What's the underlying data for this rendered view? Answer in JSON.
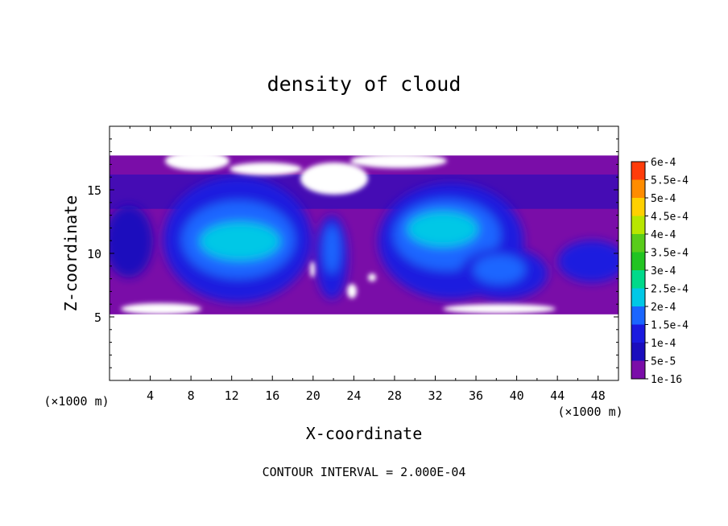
{
  "chart_data": {
    "type": "heatmap",
    "title": "density of cloud",
    "xlabel": "X-coordinate",
    "ylabel": "Z-coordinate",
    "x_unit_left": "(×1000 m)",
    "x_unit_right": "(×1000 m)",
    "footer": "CONTOUR INTERVAL = 2.000E-04",
    "xlim": [
      0,
      50
    ],
    "ylim": [
      0,
      20
    ],
    "x_ticks": [
      "4",
      "8",
      "12",
      "16",
      "20",
      "24",
      "28",
      "32",
      "36",
      "40",
      "44",
      "48"
    ],
    "y_ticks": [
      "5",
      "10",
      "15"
    ],
    "grid": false,
    "cloud_layer_z": [
      5.2,
      17.7
    ],
    "colorbar": {
      "placement": "right",
      "levels": [
        "1e-16",
        "5e-5",
        "1e-4",
        "1.5e-4",
        "2e-4",
        "2.5e-4",
        "3e-4",
        "3.5e-4",
        "4e-4",
        "4.5e-4",
        "5e-4",
        "5.5e-4",
        "6e-4"
      ],
      "colors": [
        "#7a0da8",
        "#1a0dbd",
        "#1a1adf",
        "#1a66ff",
        "#00c8e6",
        "#00d98a",
        "#22c422",
        "#59cc1a",
        "#b8e600",
        "#ffd000",
        "#ff8c00",
        "#ff3c0a",
        "#ff6060",
        "#ffb3b3"
      ]
    },
    "cells": [
      {
        "region": "upper-left lobe",
        "x": [
          9,
          18
        ],
        "z": [
          7.5,
          14.5
        ],
        "peak": "1.5e-4"
      },
      {
        "region": "center column",
        "x": [
          19,
          22
        ],
        "z": [
          6,
          12
        ],
        "peak": "1e-4"
      },
      {
        "region": "upper-right lobe",
        "x": [
          27,
          37
        ],
        "z": [
          8,
          14.5
        ],
        "peak": "1.5e-4"
      },
      {
        "region": "lower-right lobe",
        "x": [
          35,
          42
        ],
        "z": [
          6,
          11
        ],
        "peak": "1e-4"
      },
      {
        "region": "far-right band",
        "x": [
          43,
          50
        ],
        "z": [
          6,
          11
        ],
        "peak": "5e-5"
      }
    ]
  }
}
